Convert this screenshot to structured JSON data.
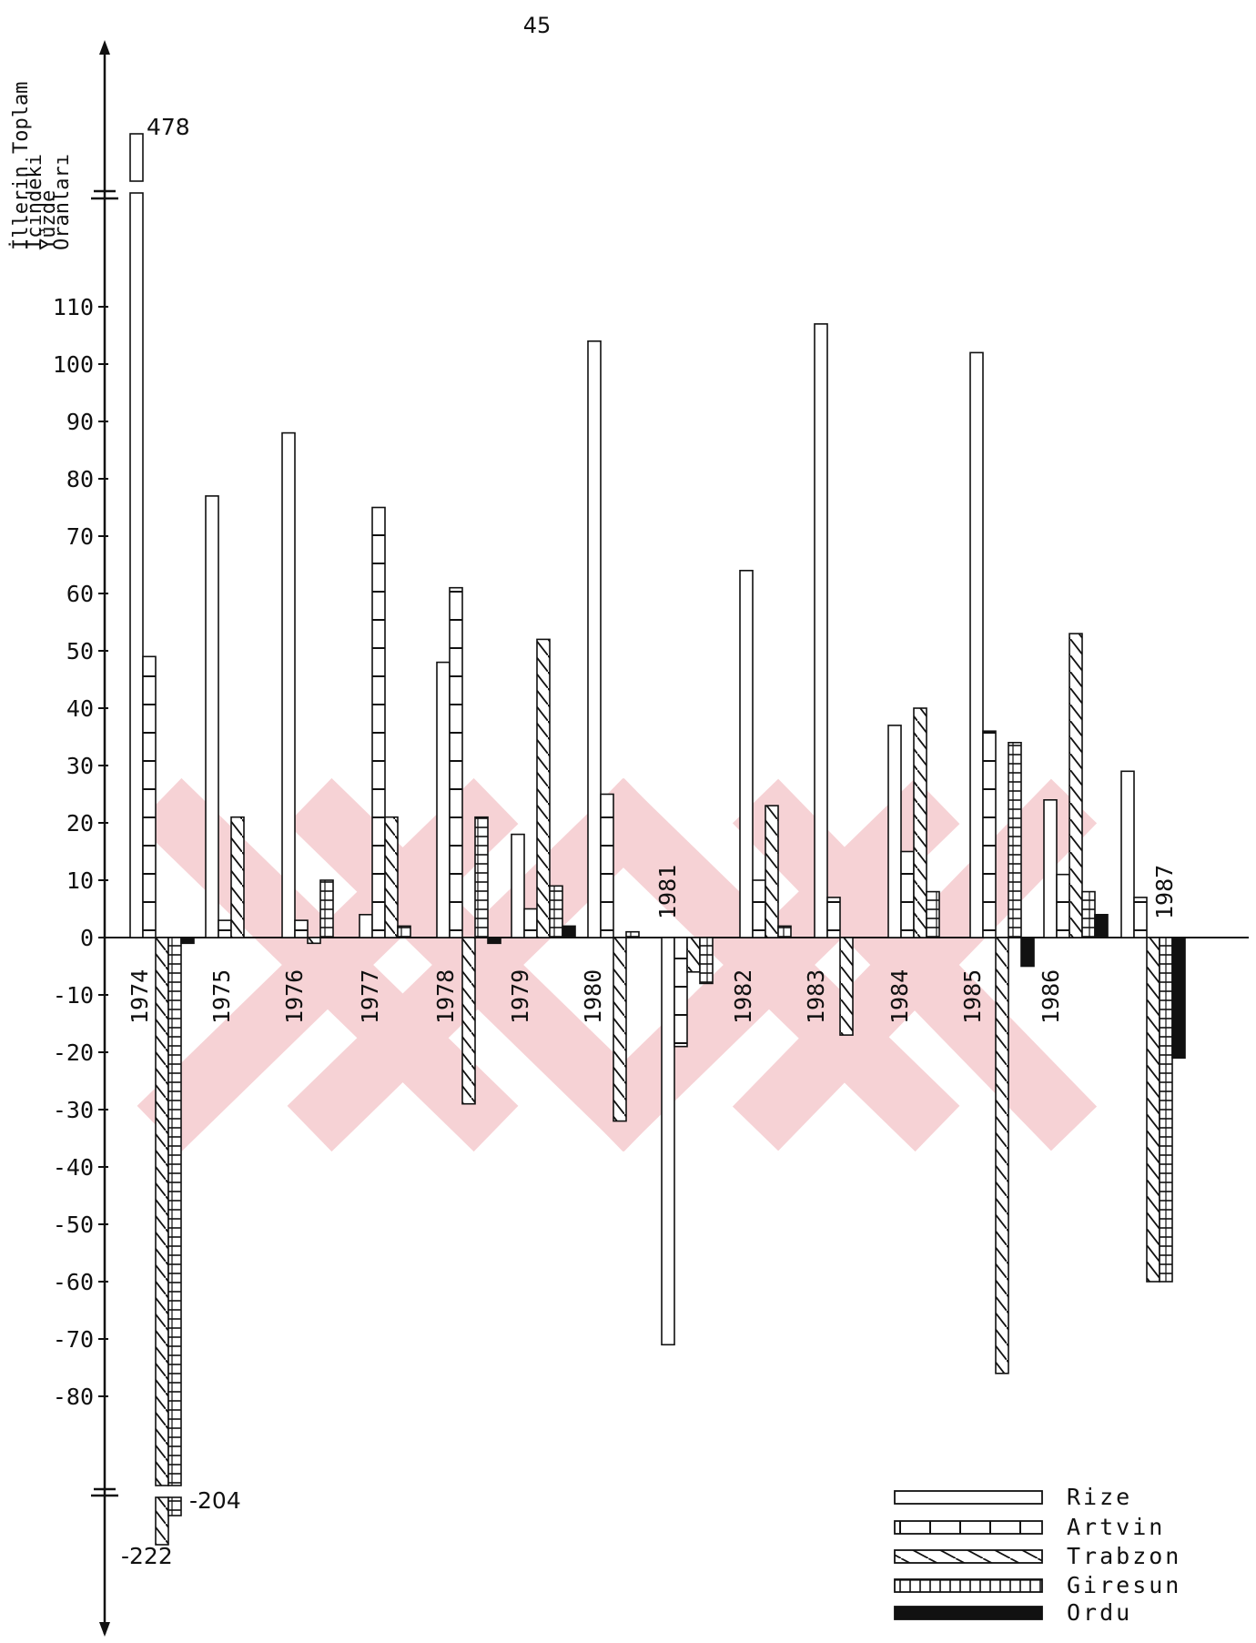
{
  "page_number": "45",
  "chart_data": {
    "type": "bar",
    "title": "",
    "ylabel_lines": [
      "İllerin Toplam",
      "İçindeki",
      "Yüzde",
      "Oranları"
    ],
    "xlabel": "",
    "ylim": [
      -85,
      115
    ],
    "axis_break": {
      "top_label": "478",
      "bottom_labels": [
        "-204",
        "-222"
      ]
    },
    "y_ticks": [
      110,
      100,
      90,
      80,
      70,
      60,
      50,
      40,
      30,
      20,
      10,
      0,
      -10,
      -20,
      -30,
      -40,
      -50,
      -60,
      -70,
      -80
    ],
    "categories": [
      "1974",
      "1975",
      "1976",
      "1977",
      "1978",
      "1979",
      "1980",
      "1981",
      "1982",
      "1983",
      "1984",
      "1985",
      "1986",
      "1987"
    ],
    "series": [
      {
        "name": "Rize",
        "pattern": "blank",
        "values": [
          478,
          77,
          88,
          4,
          48,
          18,
          104,
          -71,
          64,
          107,
          37,
          102,
          24,
          29
        ]
      },
      {
        "name": "Artvin",
        "pattern": "bricks",
        "values": [
          49,
          3,
          3,
          75,
          61,
          5,
          25,
          -19,
          10,
          7,
          15,
          36,
          11,
          7
        ]
      },
      {
        "name": "Trabzon",
        "pattern": "diagonal",
        "values": [
          -222,
          21,
          -1,
          21,
          -29,
          52,
          -32,
          -6,
          23,
          -17,
          40,
          -76,
          53,
          -60
        ]
      },
      {
        "name": "Giresun",
        "pattern": "vertical",
        "values": [
          -204,
          0,
          10,
          2,
          21,
          9,
          1,
          -8,
          2,
          0,
          8,
          34,
          8,
          -60
        ]
      },
      {
        "name": "Ordu",
        "pattern": "solid",
        "values": [
          -1,
          0,
          0,
          0,
          -1,
          2,
          0,
          0,
          0,
          0,
          0,
          -5,
          4,
          -21
        ]
      }
    ],
    "legend_position": "bottom-right",
    "grid": false,
    "colors": {
      "ink": "#111111",
      "watermark": "#f3c4c8"
    }
  }
}
